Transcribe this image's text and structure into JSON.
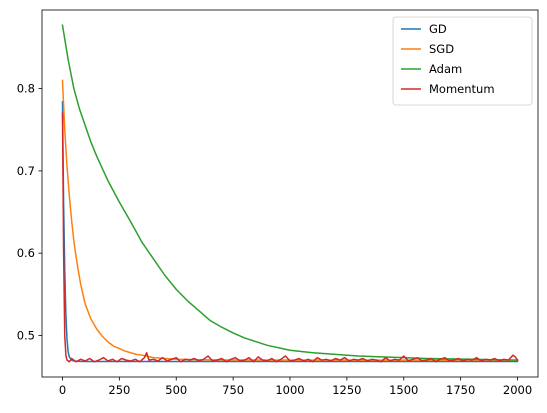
{
  "chart_data": {
    "type": "line",
    "title": "",
    "xlabel": "",
    "ylabel": "",
    "xlim": [
      -90,
      2090
    ],
    "ylim": [
      0.4495,
      0.8955
    ],
    "xticks": [
      0,
      250,
      500,
      750,
      1000,
      1250,
      1500,
      1750,
      2000
    ],
    "yticks": [
      0.5,
      0.6,
      0.7,
      0.8
    ],
    "xtick_labels": [
      "0",
      "250",
      "500",
      "750",
      "1000",
      "1250",
      "1500",
      "1750",
      "2000"
    ],
    "ytick_labels": [
      "0.5",
      "0.6",
      "0.7",
      "0.8"
    ],
    "legend": {
      "position": "upper-right",
      "entries": [
        "GD",
        "SGD",
        "Adam",
        "Momentum"
      ]
    },
    "grid": false,
    "series": [
      {
        "name": "GD",
        "color": "#1f77b4",
        "x": [
          0,
          5,
          10,
          15,
          20,
          25,
          30,
          40,
          50,
          75,
          100,
          150,
          250,
          500,
          1000,
          1500,
          2000
        ],
        "y": [
          0.784,
          0.66,
          0.58,
          0.525,
          0.495,
          0.48,
          0.474,
          0.47,
          0.469,
          0.4685,
          0.4683,
          0.4683,
          0.4683,
          0.4683,
          0.4683,
          0.4683,
          0.4683
        ]
      },
      {
        "name": "SGD",
        "color": "#ff7f0e",
        "x": [
          0,
          10,
          20,
          30,
          40,
          50,
          60,
          70,
          80,
          90,
          100,
          125,
          150,
          175,
          200,
          225,
          250,
          275,
          300,
          325,
          350,
          400,
          450,
          500,
          600,
          750,
          1000,
          1250,
          1500,
          1750,
          2000
        ],
        "y": [
          0.81,
          0.75,
          0.705,
          0.67,
          0.64,
          0.615,
          0.595,
          0.578,
          0.562,
          0.55,
          0.538,
          0.52,
          0.508,
          0.499,
          0.492,
          0.487,
          0.484,
          0.481,
          0.479,
          0.477,
          0.476,
          0.473,
          0.472,
          0.471,
          0.4705,
          0.4702,
          0.47,
          0.47,
          0.47,
          0.47,
          0.47
        ]
      },
      {
        "name": "Adam",
        "color": "#2ca02c",
        "x": [
          0,
          25,
          50,
          75,
          100,
          125,
          150,
          175,
          200,
          250,
          300,
          350,
          400,
          450,
          500,
          550,
          600,
          650,
          700,
          750,
          800,
          900,
          1000,
          1100,
          1200,
          1300,
          1400,
          1500,
          1600,
          1700,
          1800,
          1900,
          2000
        ],
        "y": [
          0.877,
          0.835,
          0.8,
          0.775,
          0.755,
          0.735,
          0.718,
          0.703,
          0.688,
          0.662,
          0.638,
          0.613,
          0.593,
          0.573,
          0.556,
          0.542,
          0.53,
          0.518,
          0.51,
          0.503,
          0.497,
          0.488,
          0.482,
          0.479,
          0.477,
          0.475,
          0.474,
          0.473,
          0.472,
          0.4715,
          0.471,
          0.4705,
          0.47
        ]
      },
      {
        "name": "Momentum",
        "color": "#d62728",
        "x": [
          0,
          5,
          10,
          15,
          20,
          30,
          40,
          60,
          80,
          100,
          120,
          140,
          160,
          180,
          200,
          220,
          240,
          260,
          280,
          300,
          320,
          340,
          360,
          370,
          380,
          400,
          420,
          440,
          460,
          480,
          500,
          520,
          540,
          560,
          580,
          600,
          620,
          640,
          660,
          680,
          700,
          720,
          740,
          760,
          780,
          800,
          820,
          840,
          860,
          880,
          900,
          920,
          940,
          960,
          980,
          1000,
          1020,
          1040,
          1060,
          1080,
          1100,
          1120,
          1140,
          1160,
          1180,
          1200,
          1220,
          1240,
          1260,
          1280,
          1300,
          1320,
          1340,
          1360,
          1380,
          1400,
          1420,
          1440,
          1460,
          1480,
          1500,
          1520,
          1540,
          1560,
          1580,
          1600,
          1620,
          1640,
          1660,
          1680,
          1700,
          1720,
          1740,
          1760,
          1780,
          1800,
          1820,
          1840,
          1860,
          1880,
          1900,
          1920,
          1940,
          1960,
          1980,
          1990,
          2000
        ],
        "y": [
          0.77,
          0.6,
          0.5,
          0.476,
          0.47,
          0.468,
          0.472,
          0.468,
          0.471,
          0.469,
          0.472,
          0.468,
          0.47,
          0.473,
          0.469,
          0.471,
          0.468,
          0.472,
          0.47,
          0.469,
          0.471,
          0.468,
          0.473,
          0.479,
          0.47,
          0.471,
          0.469,
          0.473,
          0.469,
          0.471,
          0.473,
          0.468,
          0.471,
          0.47,
          0.472,
          0.469,
          0.471,
          0.475,
          0.469,
          0.47,
          0.472,
          0.468,
          0.471,
          0.473,
          0.469,
          0.47,
          0.473,
          0.468,
          0.474,
          0.47,
          0.469,
          0.472,
          0.468,
          0.471,
          0.475,
          0.469,
          0.47,
          0.472,
          0.469,
          0.471,
          0.468,
          0.473,
          0.47,
          0.471,
          0.469,
          0.472,
          0.47,
          0.473,
          0.469,
          0.471,
          0.47,
          0.472,
          0.469,
          0.471,
          0.47,
          0.468,
          0.473,
          0.469,
          0.471,
          0.47,
          0.475,
          0.469,
          0.471,
          0.473,
          0.469,
          0.47,
          0.472,
          0.468,
          0.471,
          0.473,
          0.469,
          0.47,
          0.472,
          0.469,
          0.471,
          0.47,
          0.473,
          0.469,
          0.471,
          0.47,
          0.472,
          0.469,
          0.471,
          0.47,
          0.476,
          0.474,
          0.47
        ]
      }
    ]
  }
}
